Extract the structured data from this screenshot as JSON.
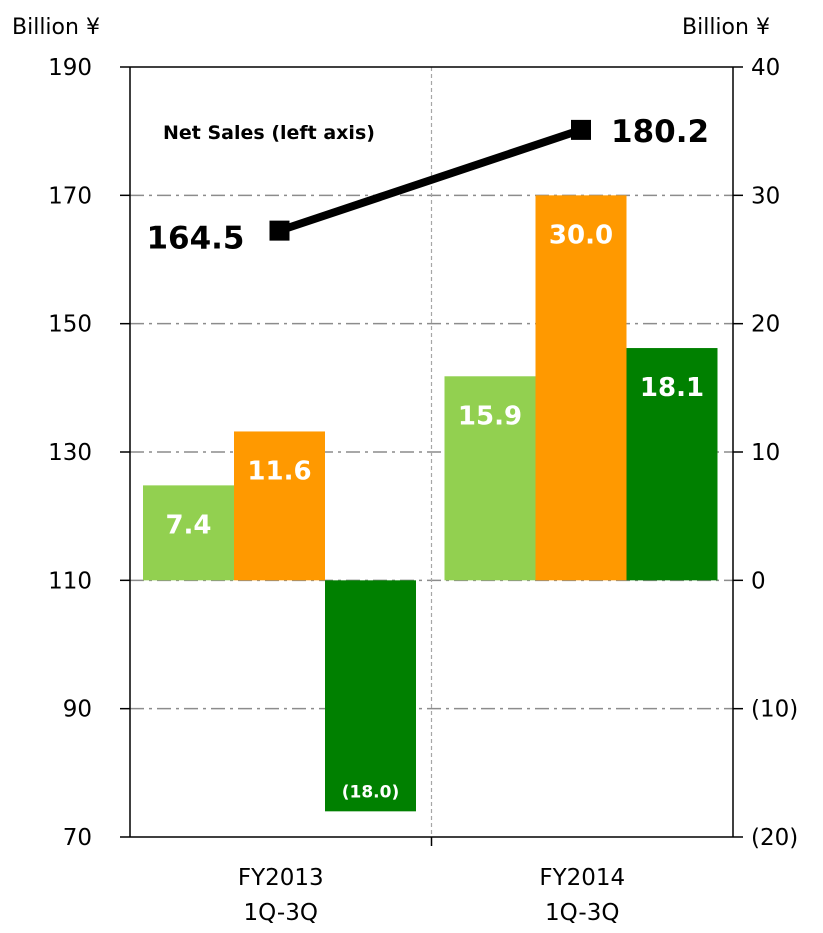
{
  "chart_data": {
    "type": "bar",
    "left_axis": {
      "unit_label": "Billion ¥",
      "ylim": [
        70,
        190
      ],
      "ticks": [
        "190",
        "170",
        "150",
        "130",
        "110",
        "90",
        "70"
      ],
      "tick_values": [
        190,
        170,
        150,
        130,
        110,
        90,
        70
      ]
    },
    "right_axis": {
      "unit_label": "Billion ¥",
      "ylim": [
        -20,
        40
      ],
      "ticks": [
        "40",
        "30",
        "20",
        "10",
        "0",
        "(10)",
        "(20)"
      ],
      "tick_values": [
        40,
        30,
        20,
        10,
        0,
        -10,
        -20
      ]
    },
    "categories": [
      {
        "line1": "FY2013",
        "line2": "1Q-3Q"
      },
      {
        "line1": "FY2014",
        "line2": "1Q-3Q"
      }
    ],
    "bar_series": [
      {
        "color": "#92d050",
        "values": [
          7.4,
          15.9
        ],
        "labels": [
          "7.4",
          "15.9"
        ]
      },
      {
        "color": "#ff9900",
        "values": [
          11.6,
          30.0
        ],
        "labels": [
          "11.6",
          "30.0"
        ]
      },
      {
        "color": "#008000",
        "values": [
          -18.0,
          18.1
        ],
        "labels": [
          "(18.0)",
          "18.1"
        ]
      }
    ],
    "line_series": {
      "name": "Net Sales (left axis)",
      "axis": "left",
      "color": "#000000",
      "values": [
        164.5,
        180.2
      ],
      "labels": [
        "164.5",
        "180.2"
      ]
    },
    "grid": true
  }
}
